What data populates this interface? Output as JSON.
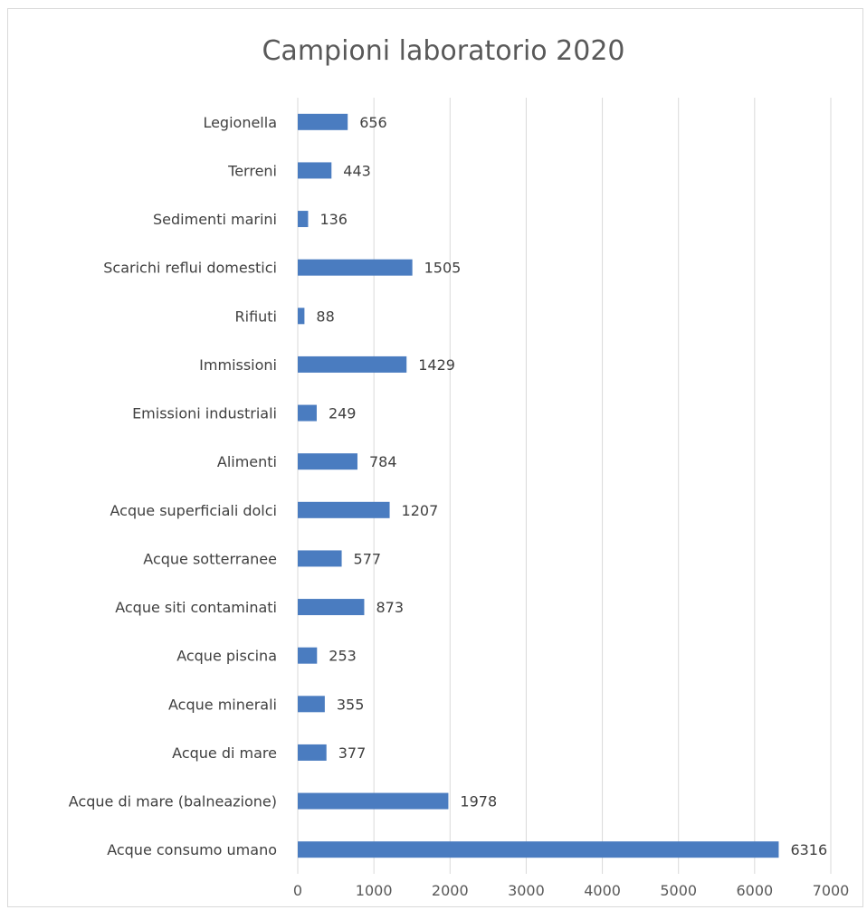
{
  "chart_data": {
    "type": "bar",
    "orientation": "horizontal",
    "title": "Campioni laboratorio 2020",
    "categories": [
      "Legionella",
      "Terreni",
      "Sedimenti marini",
      "Scarichi reflui domestici",
      "Rifiuti",
      "Immissioni",
      "Emissioni industriali",
      "Alimenti",
      "Acque superficiali dolci",
      "Acque sotterranee",
      "Acque siti contaminati",
      "Acque piscina",
      "Acque minerali",
      "Acque di mare",
      "Acque di mare (balneazione)",
      "Acque consumo umano"
    ],
    "values": [
      656,
      443,
      136,
      1505,
      88,
      1429,
      249,
      784,
      1207,
      577,
      873,
      253,
      355,
      377,
      1978,
      6316
    ],
    "xlim": [
      0,
      7000
    ],
    "ticks": [
      0,
      1000,
      2000,
      3000,
      4000,
      5000,
      6000,
      7000
    ],
    "tick_labels": [
      "0",
      "1000",
      "2000",
      "3000",
      "4000",
      "5000",
      "6000",
      "7000"
    ],
    "grid": "vertical",
    "data_labels": true,
    "bar_color": "#4a7cc0",
    "grid_color": "#d9d9d9"
  }
}
